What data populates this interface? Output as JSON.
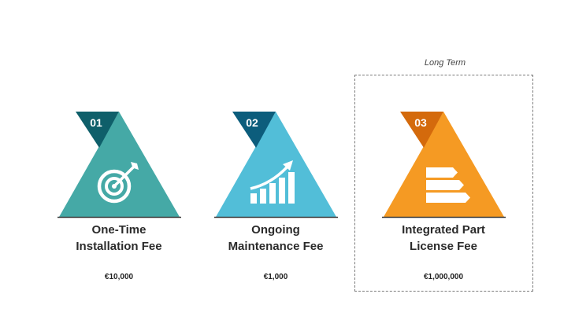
{
  "highlight": {
    "label": "Long Term"
  },
  "cards": [
    {
      "number": "01",
      "title_line1": "One-Time",
      "title_line2": "Installation Fee",
      "price": "€10,000",
      "icon": "target-icon",
      "color": "#45A9A6",
      "badge_color": "#0F5F6A"
    },
    {
      "number": "02",
      "title_line1": "Ongoing",
      "title_line2": "Maintenance Fee",
      "price": "€1,000",
      "icon": "growth-chart-icon",
      "color": "#52BED8",
      "badge_color": "#0C5D7C"
    },
    {
      "number": "03",
      "title_line1": "Integrated Part",
      "title_line2": "License Fee",
      "price": "€1,000,000",
      "icon": "arrow-bars-icon",
      "color": "#F59A23",
      "badge_color": "#D46A0C"
    }
  ]
}
